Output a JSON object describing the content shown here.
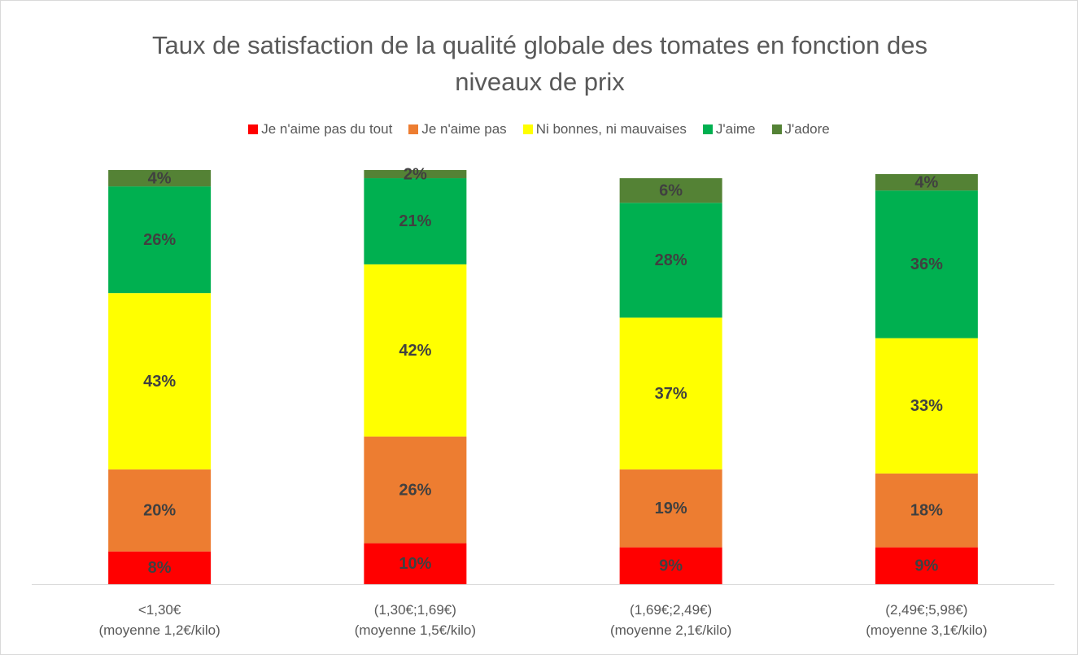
{
  "chart_data": {
    "type": "bar",
    "stacked": true,
    "title": "Taux de satisfaction de la qualité globale des tomates en fonction des niveaux de prix",
    "categories": [
      "<1,30€\n(moyenne 1,2€/kilo)",
      "(1,30€;1,69€)\n(moyenne 1,5€/kilo)",
      "(1,69€;2,49€)\n(moyenne 2,1€/kilo)",
      "(2,49€;5,98€)\n(moyenne 3,1€/kilo)"
    ],
    "series": [
      {
        "name": "Je n'aime pas du tout",
        "color": "#ff0000",
        "values": [
          8,
          10,
          9,
          9
        ],
        "value_labels": [
          "8%",
          "10%",
          "9%",
          "9%"
        ]
      },
      {
        "name": "Je n'aime pas",
        "color": "#ed7d31",
        "values": [
          20,
          26,
          19,
          18
        ],
        "value_labels": [
          "20%",
          "26%",
          "19%",
          "18%"
        ]
      },
      {
        "name": "Ni bonnes, ni mauvaises",
        "color": "#ffff00",
        "values": [
          43,
          42,
          37,
          33
        ],
        "value_labels": [
          "43%",
          "42%",
          "37%",
          "33%"
        ]
      },
      {
        "name": "J'aime",
        "color": "#00b050",
        "values": [
          26,
          21,
          28,
          36
        ],
        "value_labels": [
          "26%",
          "21%",
          "28%",
          "36%"
        ]
      },
      {
        "name": "J'adore",
        "color": "#548235",
        "values": [
          4,
          2,
          6,
          4
        ],
        "value_labels": [
          "4%",
          "2%",
          "6%",
          "4%"
        ]
      }
    ],
    "ylim": [
      0,
      100
    ],
    "legend": "top"
  }
}
